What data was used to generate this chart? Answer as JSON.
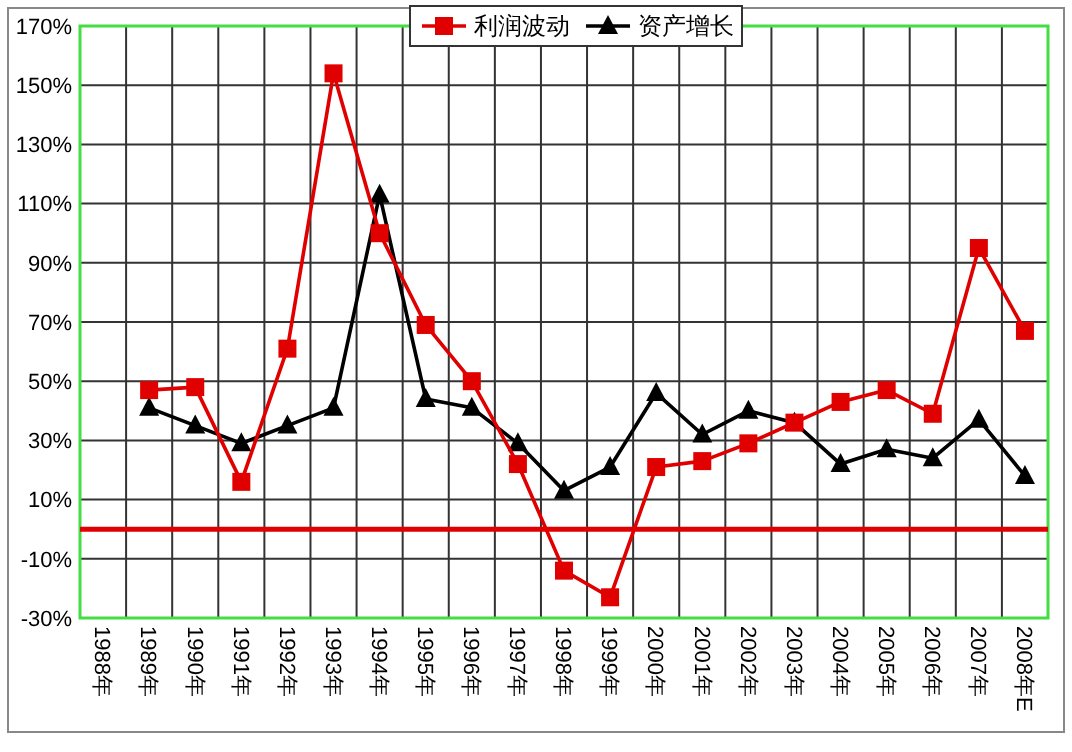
{
  "chart_data": {
    "type": "line",
    "categories": [
      "1988年",
      "1989年",
      "1990年",
      "1991年",
      "1992年",
      "1993年",
      "1994年",
      "1995年",
      "1996年",
      "1997年",
      "1998年",
      "1999年",
      "2000年",
      "2001年",
      "2002年",
      "2003年",
      "2004年",
      "2005年",
      "2006年",
      "2007年",
      "2008年E"
    ],
    "series": [
      {
        "name": "利润波动",
        "color": "#e00000",
        "marker": "square",
        "values": [
          null,
          47,
          48,
          16,
          61,
          154,
          100,
          69,
          50,
          22,
          -14,
          -23,
          21,
          23,
          29,
          36,
          43,
          47,
          39,
          95,
          67
        ]
      },
      {
        "name": "资产增长",
        "color": "#000000",
        "marker": "triangle",
        "values": [
          null,
          41,
          35,
          29,
          35,
          41,
          113,
          44,
          41,
          29,
          13,
          21,
          46,
          32,
          40,
          36,
          22,
          27,
          24,
          37,
          18
        ]
      }
    ],
    "ylim": [
      -30,
      170
    ],
    "yticks": [
      {
        "value": -30,
        "label": "-30%"
      },
      {
        "value": -10,
        "label": "-10%"
      },
      {
        "value": 10,
        "label": "10%"
      },
      {
        "value": 30,
        "label": "30%"
      },
      {
        "value": 50,
        "label": "50%"
      },
      {
        "value": 70,
        "label": "70%"
      },
      {
        "value": 90,
        "label": "90%"
      },
      {
        "value": 110,
        "label": "110%"
      },
      {
        "value": 130,
        "label": "130%"
      },
      {
        "value": 150,
        "label": "150%"
      },
      {
        "value": 170,
        "label": "170%"
      }
    ],
    "ref_lines": [
      {
        "axis": "y",
        "value": 0,
        "color": "#e00000"
      }
    ],
    "grid": true,
    "legend": "top"
  }
}
